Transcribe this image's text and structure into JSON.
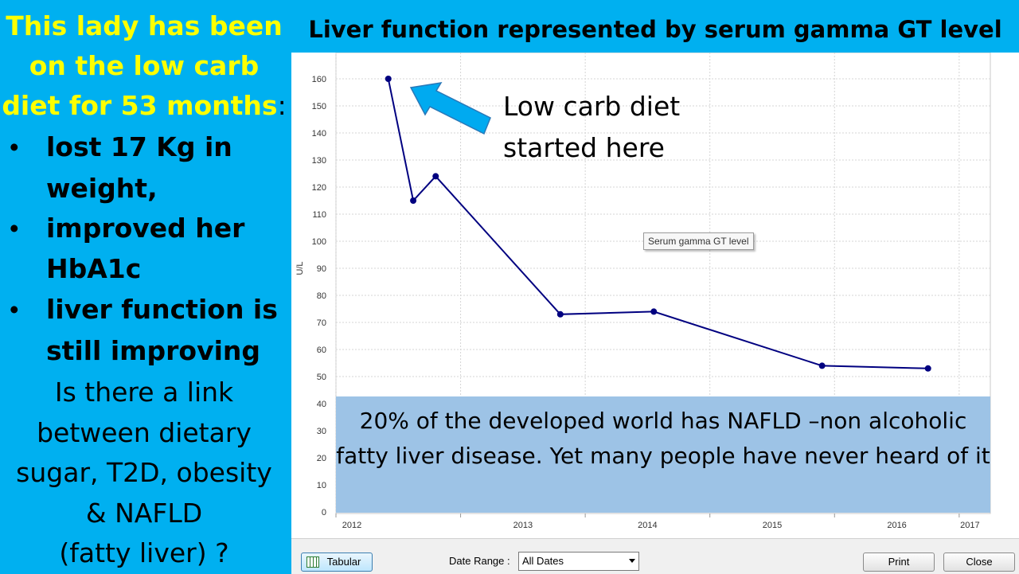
{
  "side_panel": {
    "heading_lines": [
      "This lady has been",
      "on the low carb",
      "diet for 53 months"
    ],
    "heading_colon": ":",
    "bullets": [
      [
        "lost 17 Kg in",
        "weight,"
      ],
      [
        "improved her",
        "HbA1c"
      ],
      [
        "liver function is",
        "still improving"
      ]
    ],
    "question_lines": [
      "Is there a link",
      "between dietary",
      "sugar, T2D, obesity",
      "& NAFLD",
      "(fatty liver) ?"
    ]
  },
  "title": "Liver function represented by serum gamma GT level",
  "callout_lines": [
    "Low carb diet",
    "started here"
  ],
  "info_box": "20% of the developed world has NAFLD –non alcoholic fatty liver disease. Yet many people have never heard of it",
  "tooltip": "Serum gamma GT level",
  "toolbar": {
    "tabular_label": "Tabular",
    "date_range_label": "Date Range :",
    "date_range_value": "All Dates",
    "print_label": "Print",
    "close_label": "Close"
  },
  "colors": {
    "background": "#00b0f0",
    "highlight": "#ffff00",
    "line": "#000080",
    "info_box": "#9dc3e6"
  },
  "chart_data": {
    "type": "line",
    "title": "",
    "xlabel": "",
    "ylabel": "U/L",
    "ylim": [
      0,
      165
    ],
    "yticks": [
      0,
      10,
      20,
      30,
      40,
      50,
      60,
      70,
      80,
      90,
      100,
      110,
      120,
      130,
      140,
      150,
      160
    ],
    "xlim": [
      2012.0,
      2017.25
    ],
    "xticks": [
      2012,
      2013,
      2014,
      2015,
      2016,
      2017
    ],
    "x_tick_labels": [
      "2012",
      "2013",
      "2014",
      "2015",
      "2016",
      "2017"
    ],
    "grid": true,
    "series": [
      {
        "name": "Serum gamma GT level",
        "x": [
          2012.42,
          2012.62,
          2012.8,
          2013.8,
          2014.55,
          2015.9,
          2016.75
        ],
        "y": [
          160,
          115,
          124,
          73,
          74,
          54,
          53
        ]
      }
    ]
  }
}
